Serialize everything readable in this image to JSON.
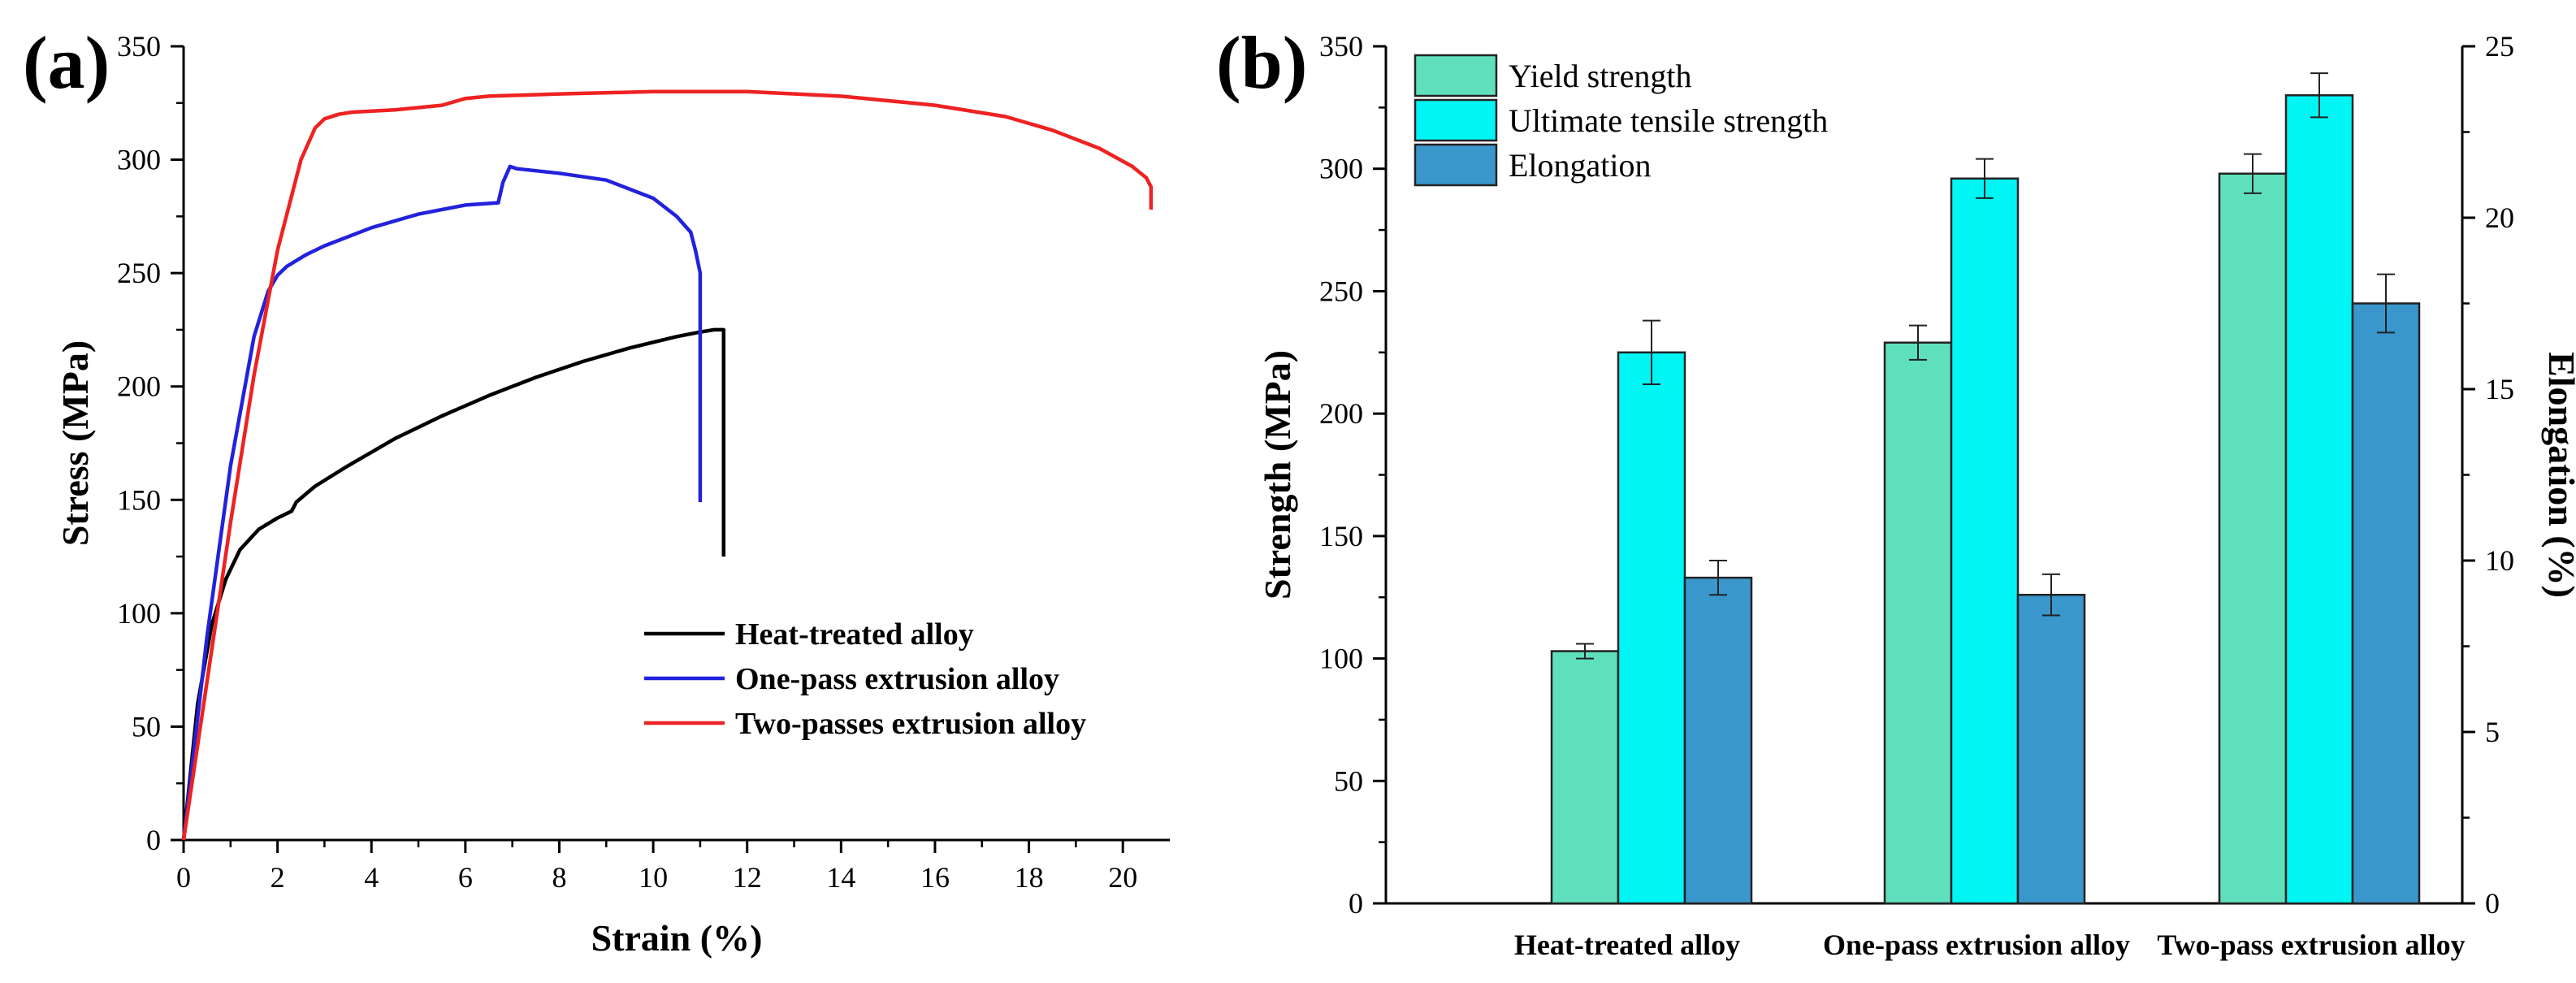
{
  "chart_data": [
    {
      "panel_label": "(a)",
      "type": "line",
      "xlabel": "Strain (%)",
      "ylabel": "Stress (MPa)",
      "xlim": [
        0,
        21
      ],
      "ylim": [
        0,
        350
      ],
      "xticks": [
        "0",
        "2",
        "4",
        "6",
        "8",
        "10",
        "12",
        "14",
        "16",
        "18",
        "20"
      ],
      "yticks": [
        "0",
        "50",
        "100",
        "150",
        "200",
        "250",
        "300",
        "350"
      ],
      "legend_position": "lower-right",
      "series": [
        {
          "name": "Heat-treated alloy",
          "color": "#000000",
          "x": [
            0,
            0.3,
            0.6,
            0.9,
            1.2,
            1.6,
            2.0,
            2.3,
            2.4,
            2.8,
            3.5,
            4.5,
            5.5,
            6.5,
            7.5,
            8.5,
            9.5,
            10.5,
            11.0,
            11.3,
            11.5,
            11.5
          ],
          "y": [
            0,
            60,
            95,
            115,
            128,
            137,
            142,
            145,
            149,
            156,
            165,
            177,
            187,
            196,
            204,
            211,
            217,
            222,
            224,
            225,
            225,
            125
          ]
        },
        {
          "name": "One-pass extrusion alloy",
          "color": "#2222dd",
          "x": [
            0,
            0.5,
            1.0,
            1.5,
            1.8,
            2.0,
            2.2,
            2.6,
            3.0,
            4.0,
            5.0,
            6.0,
            6.7,
            6.8,
            6.95,
            7.1,
            8.0,
            9.0,
            10.0,
            10.5,
            10.8,
            10.9,
            11.0,
            11.0
          ],
          "y": [
            0,
            90,
            165,
            222,
            242,
            249,
            253,
            258,
            262,
            270,
            276,
            280,
            281,
            290,
            297,
            296,
            294,
            291,
            283,
            275,
            268,
            260,
            250,
            149
          ]
        },
        {
          "name": "Two-passes extrusion alloy",
          "color": "#ee2222",
          "x": [
            0,
            0.5,
            1.0,
            1.5,
            2.0,
            2.5,
            2.8,
            3.0,
            3.3,
            3.6,
            4.5,
            5.5,
            6.0,
            6.5,
            8.0,
            10.0,
            12.0,
            14.0,
            16.0,
            17.5,
            18.5,
            19.5,
            20.2,
            20.5,
            20.6,
            20.6
          ],
          "y": [
            0,
            70,
            140,
            205,
            260,
            300,
            314,
            318,
            320,
            321,
            322,
            324,
            327,
            328,
            329,
            330,
            330,
            328,
            324,
            319,
            313,
            305,
            297,
            292,
            288,
            278
          ]
        }
      ]
    },
    {
      "panel_label": "(b)",
      "type": "bar",
      "categories": [
        "Heat-treated alloy",
        "One-pass extrusion alloy",
        "Two-pass extrusion alloy"
      ],
      "ylabel": "Strength (MPa)",
      "y2label": "Elongation (%)",
      "ylim": [
        0,
        350
      ],
      "y2lim": [
        0,
        25
      ],
      "yticks": [
        "0",
        "50",
        "100",
        "150",
        "200",
        "250",
        "300",
        "350"
      ],
      "y2ticks": [
        "0",
        "5",
        "10",
        "15",
        "20",
        "25"
      ],
      "legend_position": "top-left",
      "series": [
        {
          "name": "Yield strength",
          "axis": "left",
          "color": "#5fe0bd",
          "values": [
            103,
            229,
            298
          ],
          "errors": [
            3,
            7,
            8
          ]
        },
        {
          "name": "Ultimate tensile strength",
          "axis": "left",
          "color": "#00f5f5",
          "values": [
            225,
            296,
            330
          ],
          "errors": [
            13,
            8,
            9
          ]
        },
        {
          "name": "Elongation",
          "axis": "right",
          "color": "#3a97cc",
          "values": [
            9.5,
            9.0,
            17.5
          ],
          "errors": [
            0.5,
            0.6,
            0.85
          ]
        }
      ]
    }
  ]
}
